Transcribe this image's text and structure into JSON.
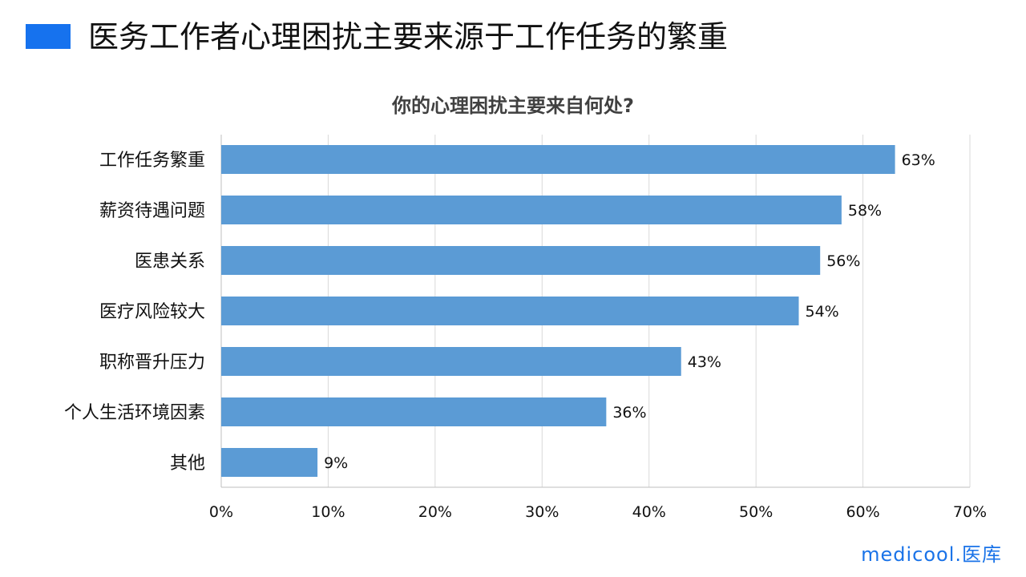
{
  "header": {
    "title": "医务工作者心理困扰主要来源于工作任务的繁重",
    "accent_color": "#1672ee"
  },
  "logo": {
    "text": "medicool.医库"
  },
  "chart_data": {
    "type": "bar",
    "orientation": "horizontal",
    "title": "你的心理困扰主要来自何处?",
    "categories": [
      "工作任务繁重",
      "薪资待遇问题",
      "医患关系",
      "医疗风险较大",
      "职称晋升压力",
      "个人生活环境因素",
      "其他"
    ],
    "values": [
      63,
      58,
      56,
      54,
      43,
      36,
      9
    ],
    "labels": [
      "63%",
      "58%",
      "56%",
      "54%",
      "43%",
      "36%",
      "9%"
    ],
    "xlim": [
      0,
      70
    ],
    "xticks": [
      "0%",
      "10%",
      "20%",
      "30%",
      "40%",
      "50%",
      "60%",
      "70%"
    ],
    "grid": true,
    "bar_color": "#5b9bd5",
    "xlabel": "",
    "ylabel": ""
  }
}
